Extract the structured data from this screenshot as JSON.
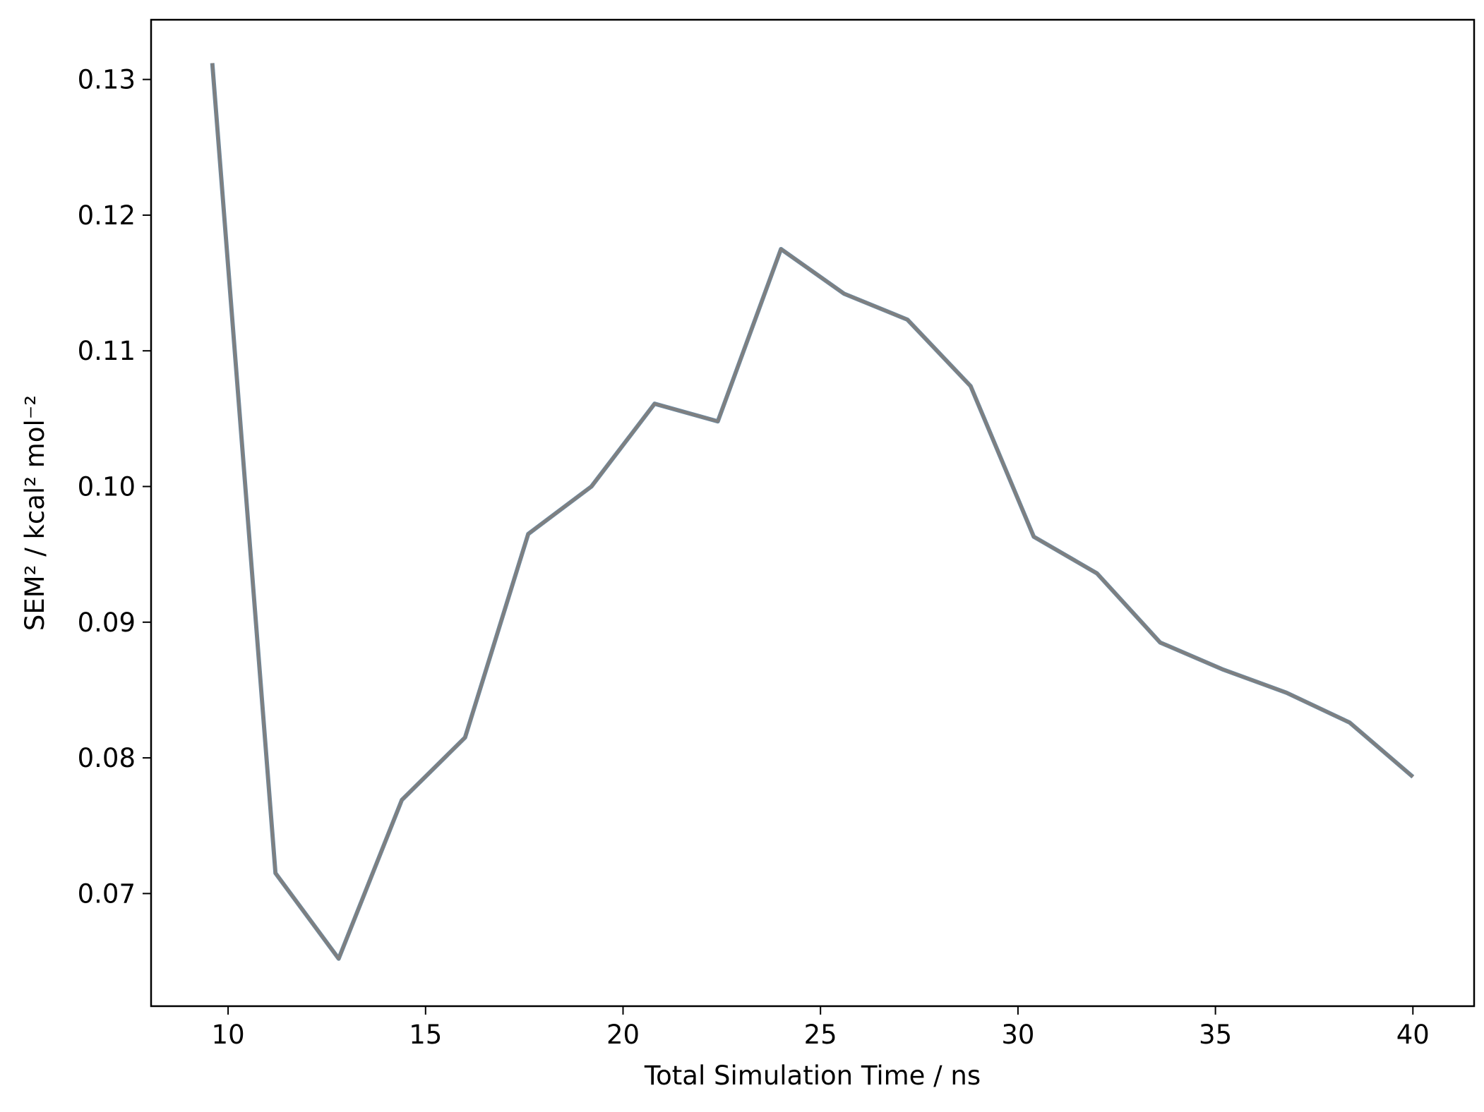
{
  "chart_data": {
    "type": "line",
    "title": "",
    "xlabel": "Total Simulation Time / ns",
    "ylabel": "SEM² / kcal² mol⁻²",
    "xlim": [
      8.05,
      41.55
    ],
    "ylim": [
      0.0617,
      0.1344
    ],
    "xticks": [
      10,
      15,
      20,
      25,
      30,
      35,
      40
    ],
    "xtick_labels": [
      "10",
      "15",
      "20",
      "25",
      "30",
      "35",
      "40"
    ],
    "yticks": [
      0.07,
      0.08,
      0.09,
      0.1,
      0.11,
      0.12,
      0.13
    ],
    "ytick_labels": [
      "0.07",
      "0.08",
      "0.09",
      "0.10",
      "0.11",
      "0.12",
      "0.13"
    ],
    "grid": false,
    "legend": "none",
    "series": [
      {
        "color": "#7f7f7f",
        "x": [
          9.6,
          11.2,
          12.8,
          14.4,
          16.0,
          17.6,
          19.2,
          20.8,
          22.4,
          24.0,
          25.6,
          27.2,
          28.8,
          30.4,
          32.0,
          33.6,
          35.2,
          36.8,
          38.4,
          40.0
        ],
        "y": [
          0.1312,
          0.0715,
          0.0652,
          0.0769,
          0.0815,
          0.0965,
          0.1,
          0.1061,
          0.1048,
          0.1175,
          0.1142,
          0.1123,
          0.1074,
          0.0963,
          0.0936,
          0.0885,
          0.0865,
          0.0848,
          0.0826,
          0.0786
        ]
      }
    ]
  }
}
